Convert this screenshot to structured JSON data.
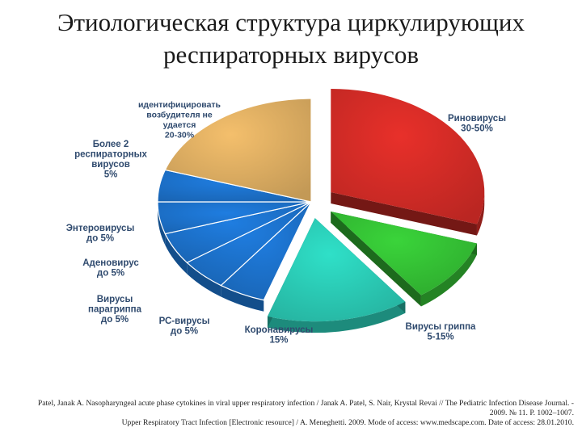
{
  "title_lines": [
    "Этиологическая структура циркулирующих",
    "респираторных вирусов"
  ],
  "chart_data": {
    "type": "pie",
    "title": "Этиологическая структура циркулирующих респираторных вирусов",
    "unit": "%",
    "slices": [
      {
        "label_lines": [
          "Риновирусы",
          "30-50%"
        ],
        "value": 30,
        "range": "30-50%",
        "color": "#e8302a",
        "exploded": true
      },
      {
        "label_lines": [
          "Вирусы гриппа",
          "5-15%"
        ],
        "value": 10,
        "range": "5-15%",
        "color": "#3ad43a",
        "exploded": true
      },
      {
        "label_lines": [
          "Коронавирусы",
          "15%"
        ],
        "value": 15,
        "range": "15%",
        "color": "#2fe0c8",
        "exploded": true
      },
      {
        "label_lines": [
          "РС-вирусы",
          "до 5%"
        ],
        "value": 5,
        "range": "до 5%",
        "color": "#1f7de0",
        "exploded": false
      },
      {
        "label_lines": [
          "Вирусы",
          "парагриппа",
          "до 5%"
        ],
        "value": 5,
        "range": "до 5%",
        "color": "#1f7de0",
        "exploded": false
      },
      {
        "label_lines": [
          "Аденовирус",
          "до 5%"
        ],
        "value": 5,
        "range": "до 5%",
        "color": "#1f7de0",
        "exploded": false
      },
      {
        "label_lines": [
          "Энтеровирусы",
          "до 5%"
        ],
        "value": 5,
        "range": "до 5%",
        "color": "#1f7de0",
        "exploded": false
      },
      {
        "label_lines": [
          "Более 2",
          "респираторных",
          "вирусов",
          "5%"
        ],
        "value": 5,
        "range": "5%",
        "color": "#1f7de0",
        "exploded": false
      },
      {
        "label_lines": [
          "идентифицировать",
          "возбудителя не",
          "удается",
          "20-30%"
        ],
        "value": 20,
        "range": "20-30%",
        "color": "#f4bf6c",
        "exploded": false
      }
    ],
    "label_color": "#2f4a6e"
  },
  "reference_lines": [
    "Patel, Janak A. Nasopharyngeal acute phase cytokines in viral upper respiratory infection / Janak A. Patel, S. Nair, Krystal Revai // The Pediatric Infection Disease Journal. -",
    "2009. № 11. P. 1002–1007.",
    "Upper Respiratory Tract Infection [Electronic resource] / A. Meneghetti. 2009. Mode of access: www.medscape.com. Date of access: 28.01.2010."
  ]
}
